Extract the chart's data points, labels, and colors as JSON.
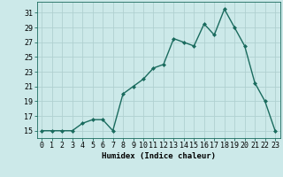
{
  "x": [
    0,
    1,
    2,
    3,
    4,
    5,
    6,
    7,
    8,
    9,
    10,
    11,
    12,
    13,
    14,
    15,
    16,
    17,
    18,
    19,
    20,
    21,
    22,
    23
  ],
  "y": [
    15,
    15,
    15,
    15,
    16,
    16.5,
    16.5,
    15,
    20,
    21,
    22,
    23.5,
    24,
    27.5,
    27,
    26.5,
    29.5,
    28,
    31.5,
    29,
    26.5,
    21.5,
    19,
    15
  ],
  "line_color": "#1a6b5e",
  "marker": "D",
  "marker_size": 2.0,
  "bg_color": "#cce9e9",
  "grid_color": "#b0d0d0",
  "xlabel": "Humidex (Indice chaleur)",
  "xlim": [
    -0.5,
    23.5
  ],
  "ylim": [
    14,
    32.5
  ],
  "yticks": [
    15,
    17,
    19,
    21,
    23,
    25,
    27,
    29,
    31
  ],
  "xticks": [
    0,
    1,
    2,
    3,
    4,
    5,
    6,
    7,
    8,
    9,
    10,
    11,
    12,
    13,
    14,
    15,
    16,
    17,
    18,
    19,
    20,
    21,
    22,
    23
  ],
  "xtick_labels": [
    "0",
    "1",
    "2",
    "3",
    "4",
    "5",
    "6",
    "7",
    "8",
    "9",
    "10",
    "11",
    "12",
    "13",
    "14",
    "15",
    "16",
    "17",
    "18",
    "19",
    "20",
    "21",
    "22",
    "23"
  ],
  "xlabel_fontsize": 6.5,
  "tick_fontsize": 6.0,
  "linewidth": 1.0
}
